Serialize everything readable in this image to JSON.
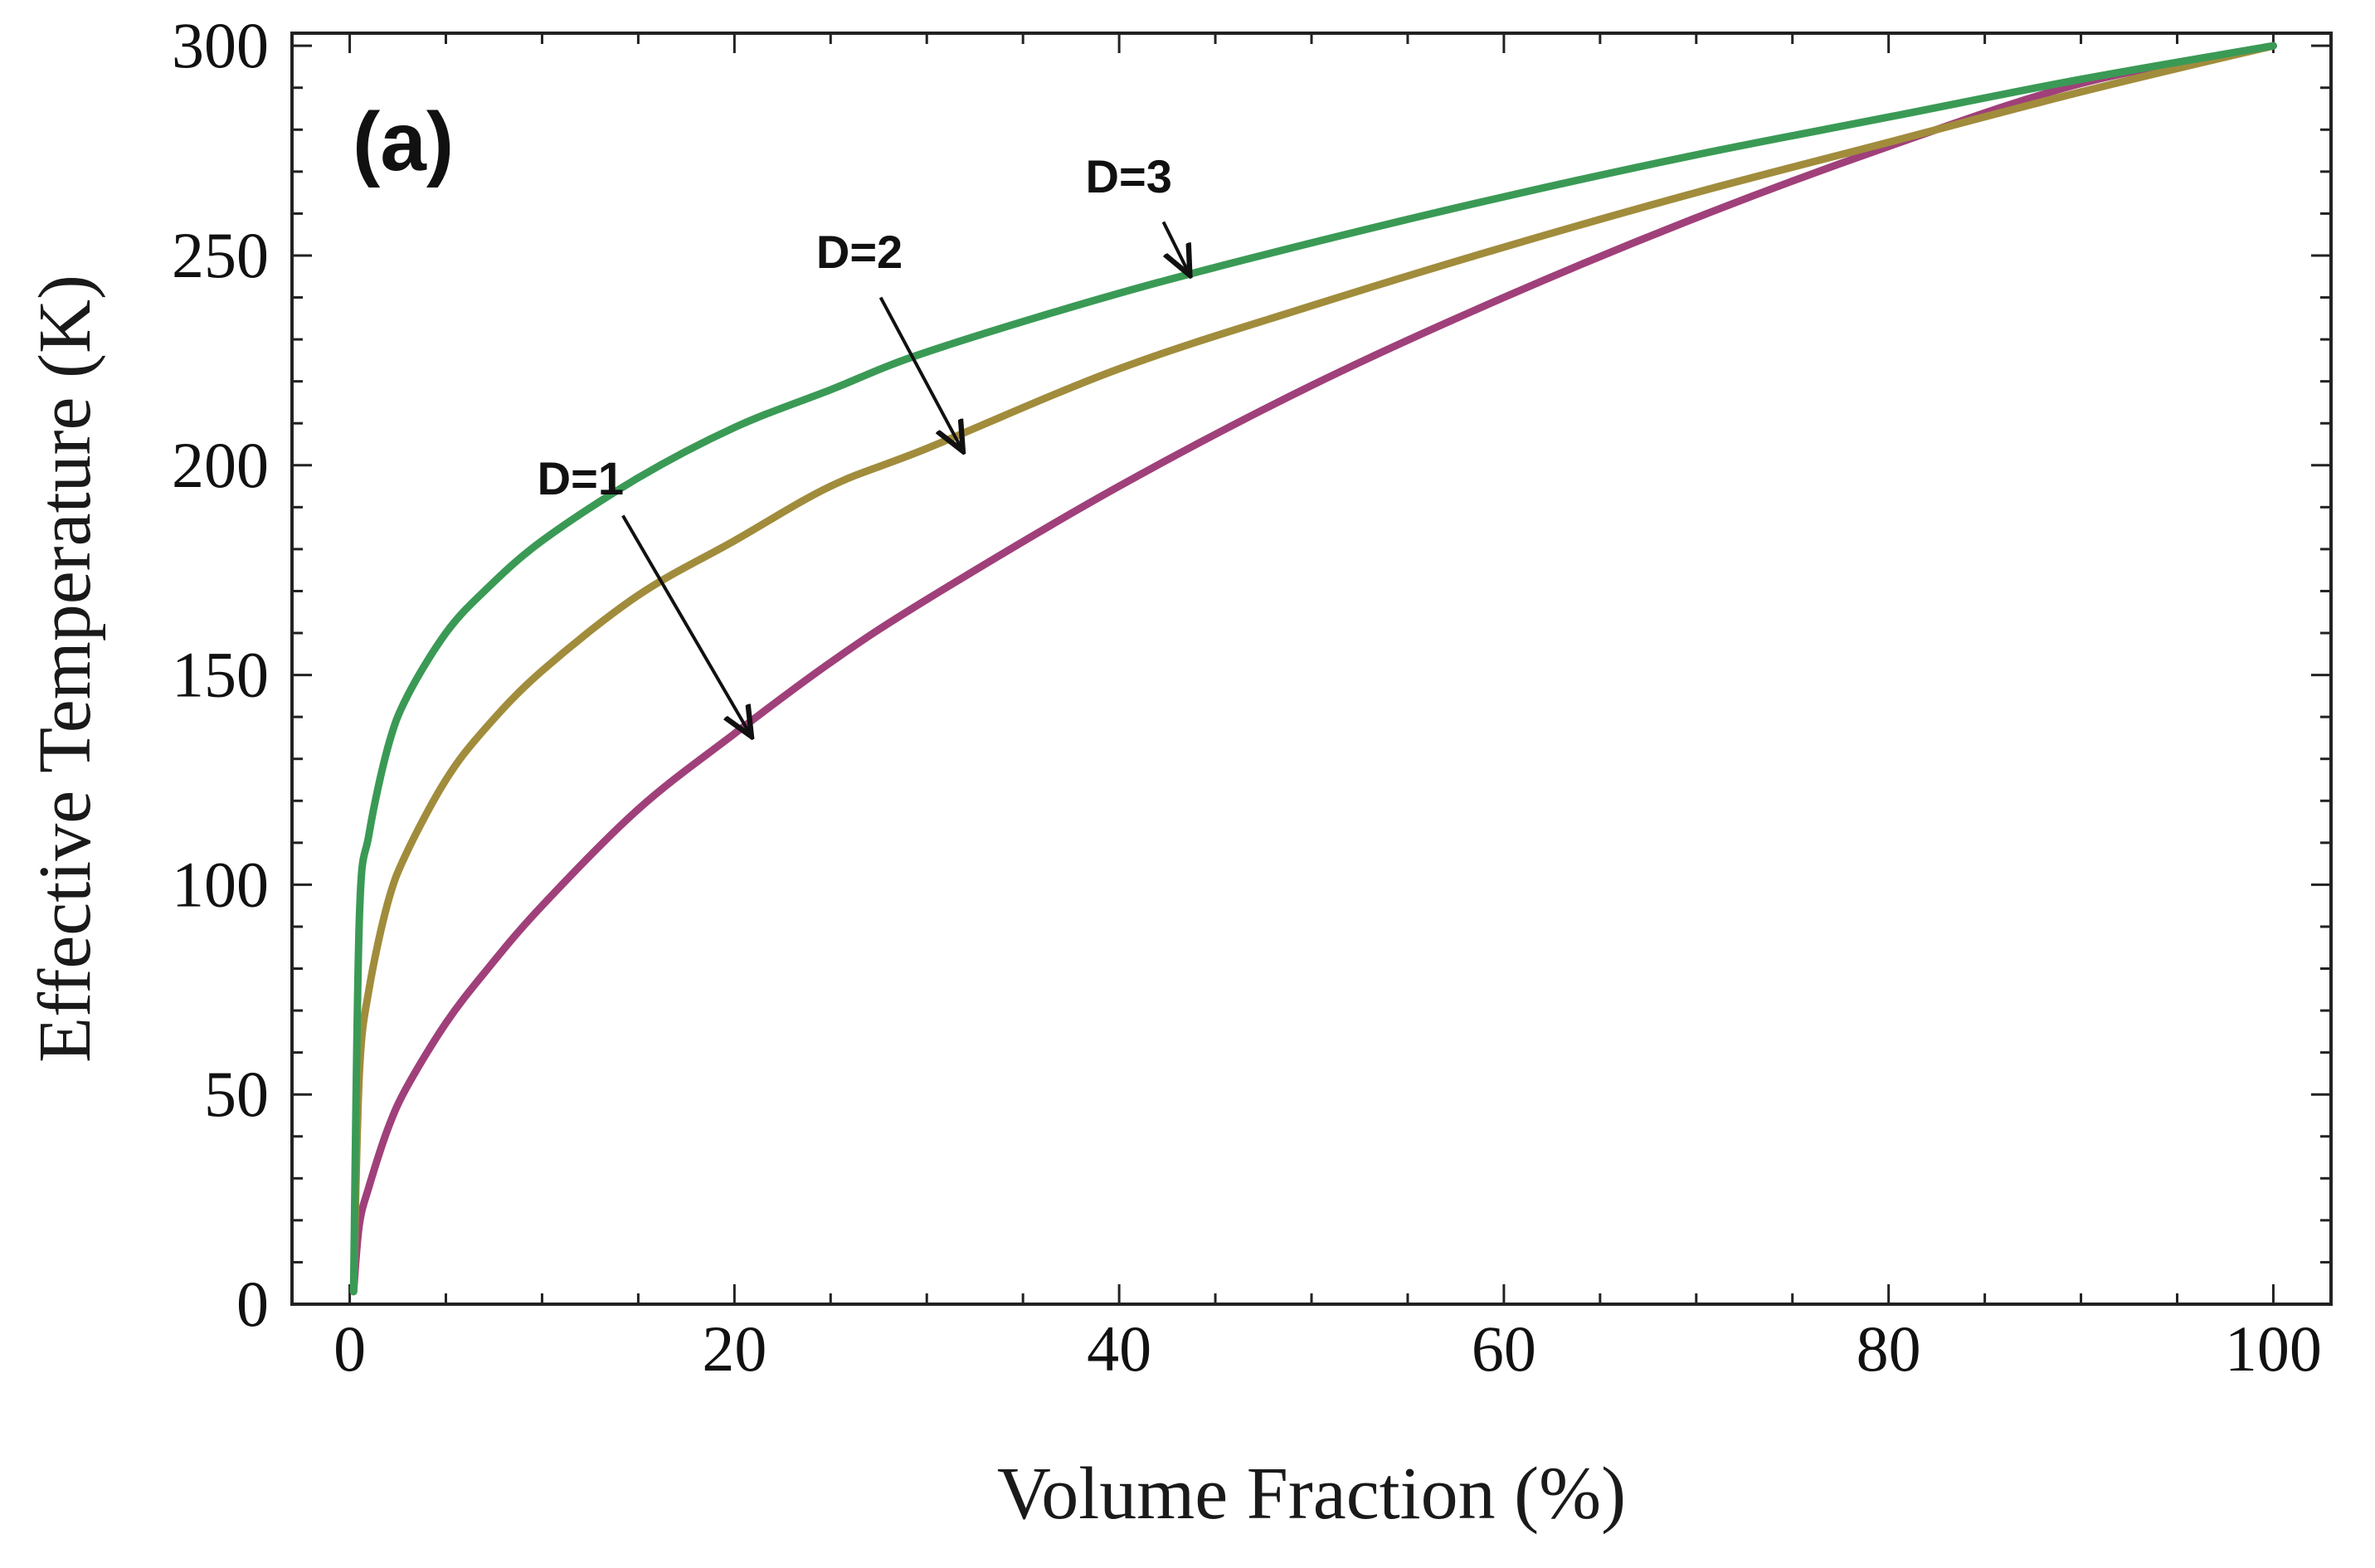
{
  "chart_data": {
    "type": "line",
    "panel_label": "(a)",
    "xlabel": "Volume Fraction (%)",
    "ylabel": "Effective  Temperature (K)",
    "xlim": [
      -3,
      103
    ],
    "ylim": [
      0,
      303
    ],
    "xticks": [
      0,
      20,
      40,
      60,
      80,
      100
    ],
    "yticks": [
      0,
      50,
      100,
      150,
      200,
      250,
      300
    ],
    "grid": false,
    "series": [
      {
        "name": "D=1",
        "color": "#a0407a",
        "x": [
          0.2,
          0.5,
          1,
          2,
          3,
          5,
          7,
          10,
          15,
          20,
          25,
          30,
          40,
          50,
          60,
          70,
          80,
          90,
          100
        ],
        "y": [
          3,
          19,
          28,
          42,
          52,
          67,
          79,
          95,
          118,
          136,
          153,
          168,
          195,
          219,
          240,
          259,
          276,
          291,
          300
        ]
      },
      {
        "name": "D=2",
        "color": "#a18c3c",
        "x": [
          0.2,
          0.5,
          1,
          2,
          3,
          5,
          7,
          10,
          15,
          20,
          25,
          30,
          40,
          50,
          60,
          70,
          80,
          90,
          100
        ],
        "y": [
          3,
          55,
          75,
          96,
          108,
          125,
          137,
          151,
          169,
          182,
          195,
          204,
          223,
          238,
          252,
          265,
          277,
          289,
          300
        ]
      },
      {
        "name": "D=3",
        "color": "#3a9a55",
        "x": [
          0.2,
          0.5,
          1,
          2,
          3,
          5,
          7,
          10,
          15,
          20,
          25,
          30,
          40,
          50,
          60,
          70,
          80,
          90,
          100
        ],
        "y": [
          3,
          92,
          112,
          133,
          145,
          160,
          170,
          182,
          197,
          209,
          218,
          227,
          241,
          253,
          264,
          274,
          283,
          292,
          300
        ]
      }
    ],
    "annotations": [
      {
        "text": "D=1",
        "text_at": [
          12,
          193
        ],
        "arrow_from": [
          14.2,
          188
        ],
        "arrow_to": [
          20.8,
          136
        ]
      },
      {
        "text": "D=2",
        "text_at": [
          26.5,
          247
        ],
        "arrow_from": [
          27.6,
          240
        ],
        "arrow_to": [
          31.8,
          204
        ]
      },
      {
        "text": "D=3",
        "text_at": [
          40.5,
          265
        ],
        "arrow_from": [
          42.3,
          258
        ],
        "arrow_to": [
          43.6,
          246
        ]
      }
    ]
  }
}
